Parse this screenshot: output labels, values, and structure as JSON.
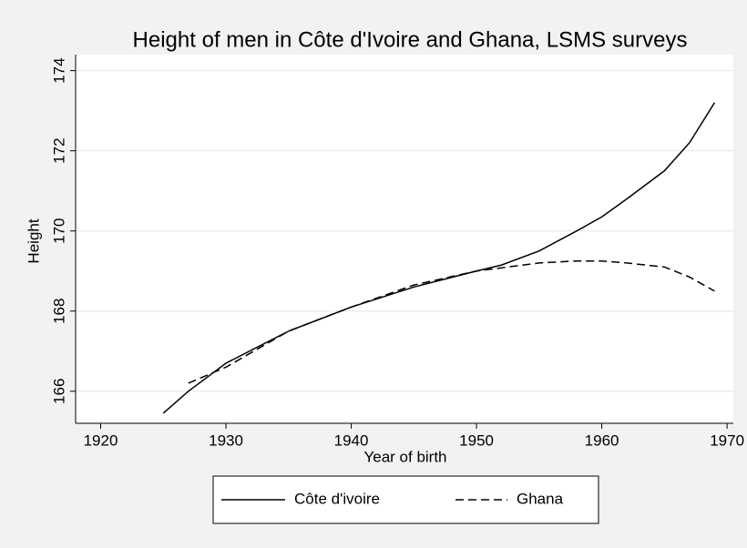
{
  "chart_data": {
    "type": "line",
    "title": "Height of men in Côte d'Ivoire and Ghana, LSMS surveys",
    "x_label": "Year of birth",
    "y_label": "Height",
    "xlim": [
      1918,
      1970.5
    ],
    "xticks": [
      1920,
      1930,
      1940,
      1950,
      1960,
      1970
    ],
    "ylim": [
      165.2,
      174.4
    ],
    "yticks": [
      166,
      168,
      170,
      172,
      174
    ],
    "grid": true,
    "legend": "bottom",
    "series": [
      {
        "name": "Côte d'ivoire",
        "color": "#000000",
        "dash": "solid",
        "x": [
          1925,
          1927,
          1930,
          1935,
          1940,
          1945,
          1950,
          1952,
          1955,
          1958,
          1960,
          1962,
          1965,
          1967,
          1969
        ],
        "values": [
          165.45,
          166.0,
          166.7,
          167.5,
          168.1,
          168.6,
          169.0,
          169.15,
          169.5,
          170.0,
          170.35,
          170.8,
          171.5,
          172.2,
          173.2
        ]
      },
      {
        "name": "Ghana",
        "color": "#000000",
        "dash": "dashed",
        "x": [
          1927,
          1930,
          1935,
          1940,
          1945,
          1950,
          1955,
          1958,
          1960,
          1962,
          1965,
          1967,
          1969
        ],
        "values": [
          166.2,
          166.6,
          167.5,
          168.1,
          168.65,
          169.0,
          169.2,
          169.25,
          169.25,
          169.2,
          169.1,
          168.85,
          168.5
        ]
      }
    ]
  }
}
